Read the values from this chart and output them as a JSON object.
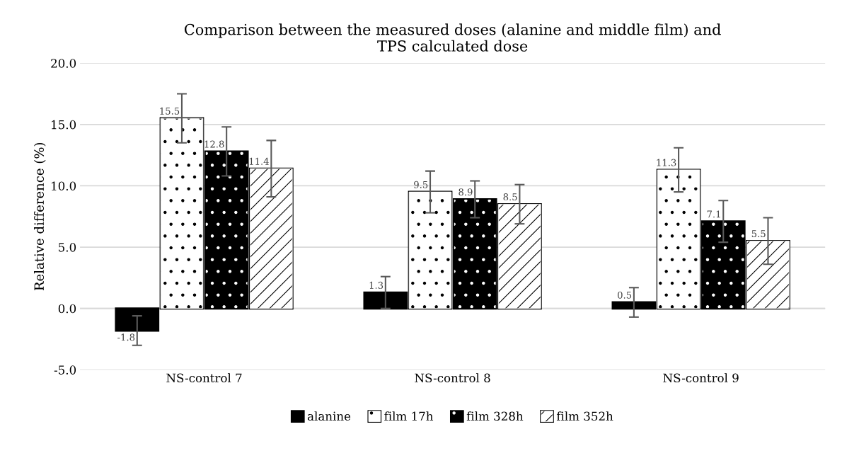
{
  "chart_data": {
    "type": "bar",
    "title": "Comparison between the measured doses (alanine and middle film) and\nTPS calculated dose",
    "ylabel": "Relative difference (%)",
    "categories": [
      "NS-control 7",
      "NS-control 8",
      "NS-control 9"
    ],
    "series": [
      {
        "name": "alanine",
        "color": "#000000",
        "values": [
          -1.8,
          1.3,
          0.5
        ],
        "errors": [
          1.2,
          1.3,
          1.2
        ]
      },
      {
        "name": "film 17h",
        "color": "#ffffff",
        "values": [
          15.5,
          9.5,
          11.3
        ],
        "errors": [
          2.0,
          1.7,
          1.8
        ]
      },
      {
        "name": "film 328h",
        "color": "#000000",
        "values": [
          12.8,
          8.9,
          7.1
        ],
        "errors": [
          2.0,
          1.5,
          1.7
        ]
      },
      {
        "name": "film 352h",
        "color": "#ffffff",
        "values": [
          11.4,
          8.5,
          5.5
        ],
        "errors": [
          2.3,
          1.6,
          1.9
        ]
      }
    ],
    "ylim": [
      -5,
      20
    ],
    "yticks": [
      {
        "value": -5,
        "label": "-5.0"
      },
      {
        "value": 0,
        "label": "0.0"
      },
      {
        "value": 5,
        "label": "5.0"
      },
      {
        "value": 10,
        "label": "10.0"
      },
      {
        "value": 15,
        "label": "15.0"
      },
      {
        "value": 20,
        "label": "20.0"
      }
    ],
    "grid": "y",
    "legend": "bottom",
    "data_labels": true
  }
}
